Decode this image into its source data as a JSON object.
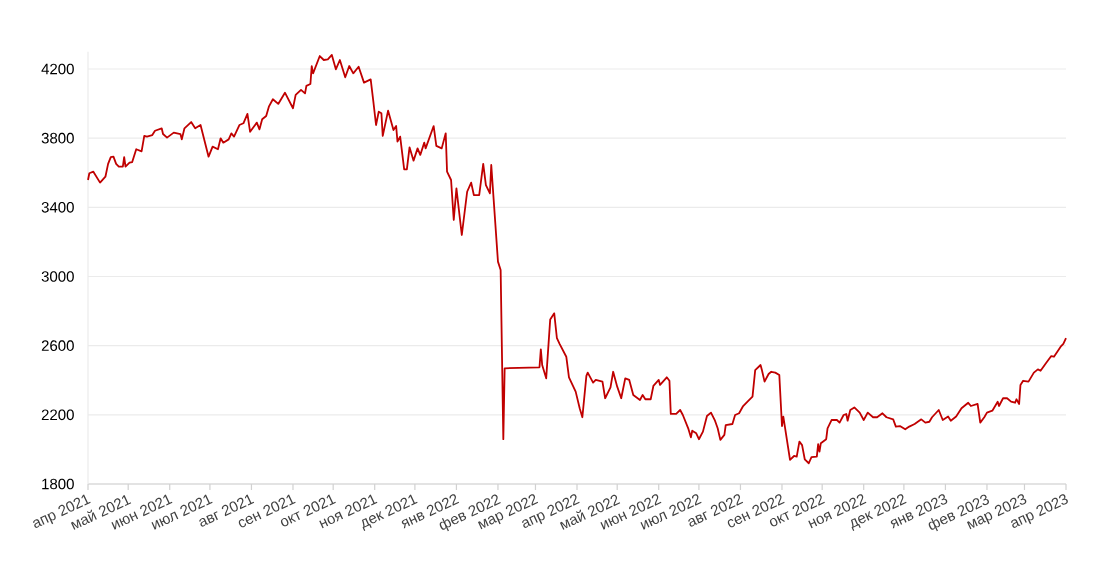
{
  "chart_data": {
    "type": "line",
    "color": "#c00000",
    "x": [
      "2021-04-01",
      "2021-04-02",
      "2021-04-05",
      "2021-04-10",
      "2021-04-14",
      "2021-04-16",
      "2021-04-18",
      "2021-04-20",
      "2021-04-22",
      "2021-04-24",
      "2021-04-27",
      "2021-04-28",
      "2021-04-29",
      "2021-05-02",
      "2021-05-04",
      "2021-05-07",
      "2021-05-11",
      "2021-05-13",
      "2021-05-15",
      "2021-05-19",
      "2021-05-21",
      "2021-05-26",
      "2021-05-27",
      "2021-05-30",
      "2021-06-04",
      "2021-06-09",
      "2021-06-10",
      "2021-06-12",
      "2021-06-17",
      "2021-06-20",
      "2021-06-24",
      "2021-06-30",
      "2021-07-03",
      "2021-07-07",
      "2021-07-09",
      "2021-07-11",
      "2021-07-15",
      "2021-07-17",
      "2021-07-19",
      "2021-07-23",
      "2021-07-26",
      "2021-07-29",
      "2021-07-31",
      "2021-08-05",
      "2021-08-07",
      "2021-08-09",
      "2021-08-12",
      "2021-08-14",
      "2021-08-17",
      "2021-08-21",
      "2021-08-26",
      "2021-09-01",
      "2021-09-03",
      "2021-09-07",
      "2021-09-10",
      "2021-09-11",
      "2021-09-14",
      "2021-09-15",
      "2021-09-16",
      "2021-09-21",
      "2021-09-24",
      "2021-09-27",
      "2021-09-30",
      "2021-10-03",
      "2021-10-06",
      "2021-10-10",
      "2021-10-13",
      "2021-10-16",
      "2021-10-20",
      "2021-10-24",
      "2021-10-29",
      "2021-10-31",
      "2021-11-02",
      "2021-11-04",
      "2021-11-06",
      "2021-11-07",
      "2021-11-11",
      "2021-11-15",
      "2021-11-17",
      "2021-11-18",
      "2021-11-20",
      "2021-11-23",
      "2021-11-25",
      "2021-11-27",
      "2021-11-30",
      "2021-12-03",
      "2021-12-05",
      "2021-12-08",
      "2021-12-09",
      "2021-12-15",
      "2021-12-17",
      "2021-12-21",
      "2021-12-24",
      "2021-12-25",
      "2021-12-28",
      "2021-12-30",
      "2022-01-01",
      "2022-01-05",
      "2022-01-09",
      "2022-01-12",
      "2022-01-14",
      "2022-01-18",
      "2022-01-21",
      "2022-01-23",
      "2022-01-26",
      "2022-01-27",
      "2022-02-01",
      "2022-02-03",
      "2022-02-05",
      "2022-02-06",
      "2022-03-04",
      "2022-03-05",
      "2022-03-06",
      "2022-03-09",
      "2022-03-12",
      "2022-03-15",
      "2022-03-17",
      "2022-03-19",
      "2022-03-24",
      "2022-03-26",
      "2022-03-31",
      "2022-04-03",
      "2022-04-05",
      "2022-04-08",
      "2022-04-09",
      "2022-04-13",
      "2022-04-15",
      "2022-04-20",
      "2022-04-22",
      "2022-04-26",
      "2022-04-28",
      "2022-05-01",
      "2022-05-04",
      "2022-05-07",
      "2022-05-10",
      "2022-05-13",
      "2022-05-18",
      "2022-05-20",
      "2022-05-22",
      "2022-05-26",
      "2022-05-28",
      "2022-06-01",
      "2022-06-02",
      "2022-06-07",
      "2022-06-09",
      "2022-06-10",
      "2022-06-14",
      "2022-06-17",
      "2022-06-19",
      "2022-06-23",
      "2022-06-25",
      "2022-06-26",
      "2022-06-29",
      "2022-07-01",
      "2022-07-04",
      "2022-07-07",
      "2022-07-10",
      "2022-07-13",
      "2022-07-15",
      "2022-07-17",
      "2022-07-20",
      "2022-07-21",
      "2022-07-26",
      "2022-07-28",
      "2022-07-31",
      "2022-08-03",
      "2022-08-07",
      "2022-08-10",
      "2022-08-12",
      "2022-08-16",
      "2022-08-17",
      "2022-08-19",
      "2022-08-22",
      "2022-08-24",
      "2022-08-27",
      "2022-08-30",
      "2022-09-01",
      "2022-09-02",
      "2022-09-07",
      "2022-09-10",
      "2022-09-12",
      "2022-09-14",
      "2022-09-16",
      "2022-09-18",
      "2022-09-21",
      "2022-09-23",
      "2022-09-27",
      "2022-09-28",
      "2022-09-29",
      "2022-09-30",
      "2022-10-04",
      "2022-10-05",
      "2022-10-08",
      "2022-10-12",
      "2022-10-14",
      "2022-10-17",
      "2022-10-19",
      "2022-10-20",
      "2022-10-22",
      "2022-10-25",
      "2022-10-29",
      "2022-11-01",
      "2022-11-04",
      "2022-11-08",
      "2022-11-11",
      "2022-11-15",
      "2022-11-18",
      "2022-11-23",
      "2022-11-25",
      "2022-11-28",
      "2022-12-02",
      "2022-12-05",
      "2022-12-09",
      "2022-12-14",
      "2022-12-17",
      "2022-12-20",
      "2022-12-22",
      "2022-12-27",
      "2022-12-30",
      "2023-01-03",
      "2023-01-05",
      "2023-01-09",
      "2023-01-13",
      "2023-01-18",
      "2023-01-20",
      "2023-01-25",
      "2023-01-27",
      "2023-01-30",
      "2023-02-01",
      "2023-02-05",
      "2023-02-09",
      "2023-02-10",
      "2023-02-13",
      "2023-02-16",
      "2023-02-19",
      "2023-02-22",
      "2023-02-23",
      "2023-02-25",
      "2023-02-26",
      "2023-02-28",
      "2023-03-04",
      "2023-03-08",
      "2023-03-11",
      "2023-03-13",
      "2023-03-17",
      "2023-03-21",
      "2023-03-23",
      "2023-03-28",
      "2023-03-30",
      "2023-04-01"
    ],
    "values": [
      3558,
      3597,
      3606,
      3543,
      3577,
      3651,
      3690,
      3693,
      3651,
      3635,
      3635,
      3690,
      3635,
      3658,
      3662,
      3736,
      3724,
      3813,
      3809,
      3818,
      3843,
      3857,
      3824,
      3803,
      3832,
      3824,
      3793,
      3857,
      3893,
      3857,
      3876,
      3693,
      3751,
      3736,
      3799,
      3774,
      3793,
      3828,
      3809,
      3876,
      3886,
      3940,
      3837,
      3890,
      3851,
      3909,
      3928,
      3982,
      4025,
      3998,
      4063,
      3973,
      4050,
      4079,
      4059,
      4102,
      4113,
      4217,
      4175,
      4275,
      4252,
      4256,
      4281,
      4198,
      4252,
      4152,
      4217,
      4175,
      4213,
      4121,
      4140,
      4011,
      3876,
      3953,
      3944,
      3813,
      3959,
      3847,
      3870,
      3780,
      3809,
      3620,
      3620,
      3747,
      3670,
      3741,
      3703,
      3774,
      3741,
      3870,
      3755,
      3741,
      3828,
      3606,
      3558,
      3327,
      3510,
      3240,
      3490,
      3543,
      3471,
      3471,
      3651,
      3529,
      3481,
      3645,
      3086,
      3038,
      2059,
      2469,
      2475,
      2579,
      2488,
      2411,
      2752,
      2787,
      2643,
      2610,
      2536,
      2417,
      2334,
      2238,
      2186,
      2425,
      2444,
      2386,
      2402,
      2392,
      2296,
      2359,
      2449,
      2363,
      2296,
      2411,
      2402,
      2315,
      2286,
      2315,
      2290,
      2290,
      2367,
      2402,
      2373,
      2417,
      2397,
      2205,
      2205,
      2228,
      2199,
      2122,
      2070,
      2108,
      2093,
      2059,
      2103,
      2193,
      2213,
      2166,
      2122,
      2055,
      2084,
      2141,
      2147,
      2199,
      2209,
      2251,
      2282,
      2305,
      2459,
      2488,
      2459,
      2392,
      2436,
      2449,
      2444,
      2430,
      2135,
      2190,
      1939,
      1962,
      1958,
      2045,
      2025,
      1943,
      1920,
      1955,
      1958,
      2031,
      1987,
      2036,
      2059,
      2122,
      2170,
      2170,
      2155,
      2199,
      2205,
      2166,
      2228,
      2243,
      2213,
      2170,
      2213,
      2186,
      2186,
      2209,
      2186,
      2174,
      2132,
      2135,
      2116,
      2132,
      2147,
      2174,
      2155,
      2160,
      2186,
      2228,
      2170,
      2190,
      2166,
      2190,
      2238,
      2270,
      2251,
      2263,
      2155,
      2186,
      2213,
      2224,
      2276,
      2251,
      2296,
      2296,
      2276,
      2270,
      2290,
      2263,
      2373,
      2397,
      2392,
      2444,
      2463,
      2455,
      2498,
      2540,
      2536,
      2594,
      2610,
      2643
    ],
    "xlim": [
      "2021-04-01",
      "2023-04-01"
    ],
    "xticks": [
      {
        "value": "2021-04",
        "label": "апр 2021"
      },
      {
        "value": "2021-05",
        "label": "май 2021"
      },
      {
        "value": "2021-06",
        "label": "июн 2021"
      },
      {
        "value": "2021-07",
        "label": "июл 2021"
      },
      {
        "value": "2021-08",
        "label": "авг 2021"
      },
      {
        "value": "2021-09",
        "label": "сен 2021"
      },
      {
        "value": "2021-10",
        "label": "окт 2021"
      },
      {
        "value": "2021-11",
        "label": "ноя 2021"
      },
      {
        "value": "2021-12",
        "label": "дек 2021"
      },
      {
        "value": "2022-01",
        "label": "янв 2022"
      },
      {
        "value": "2022-02",
        "label": "фев 2022"
      },
      {
        "value": "2022-03",
        "label": "мар 2022"
      },
      {
        "value": "2022-04",
        "label": "апр 2022"
      },
      {
        "value": "2022-05",
        "label": "май 2022"
      },
      {
        "value": "2022-06",
        "label": "июн 2022"
      },
      {
        "value": "2022-07",
        "label": "июл 2022"
      },
      {
        "value": "2022-08",
        "label": "авг 2022"
      },
      {
        "value": "2022-09",
        "label": "сен 2022"
      },
      {
        "value": "2022-10",
        "label": "окт 2022"
      },
      {
        "value": "2022-11",
        "label": "ноя 2022"
      },
      {
        "value": "2022-12",
        "label": "дек 2022"
      },
      {
        "value": "2023-01",
        "label": "янв 2023"
      },
      {
        "value": "2023-02",
        "label": "фев 2023"
      },
      {
        "value": "2023-03",
        "label": "мар 2023"
      },
      {
        "value": "2023-04",
        "label": "апр 2023"
      }
    ],
    "ylim": [
      1800,
      4300
    ],
    "yticks": [
      1800,
      2200,
      2600,
      3000,
      3400,
      3800,
      4200
    ],
    "grid": "y"
  }
}
